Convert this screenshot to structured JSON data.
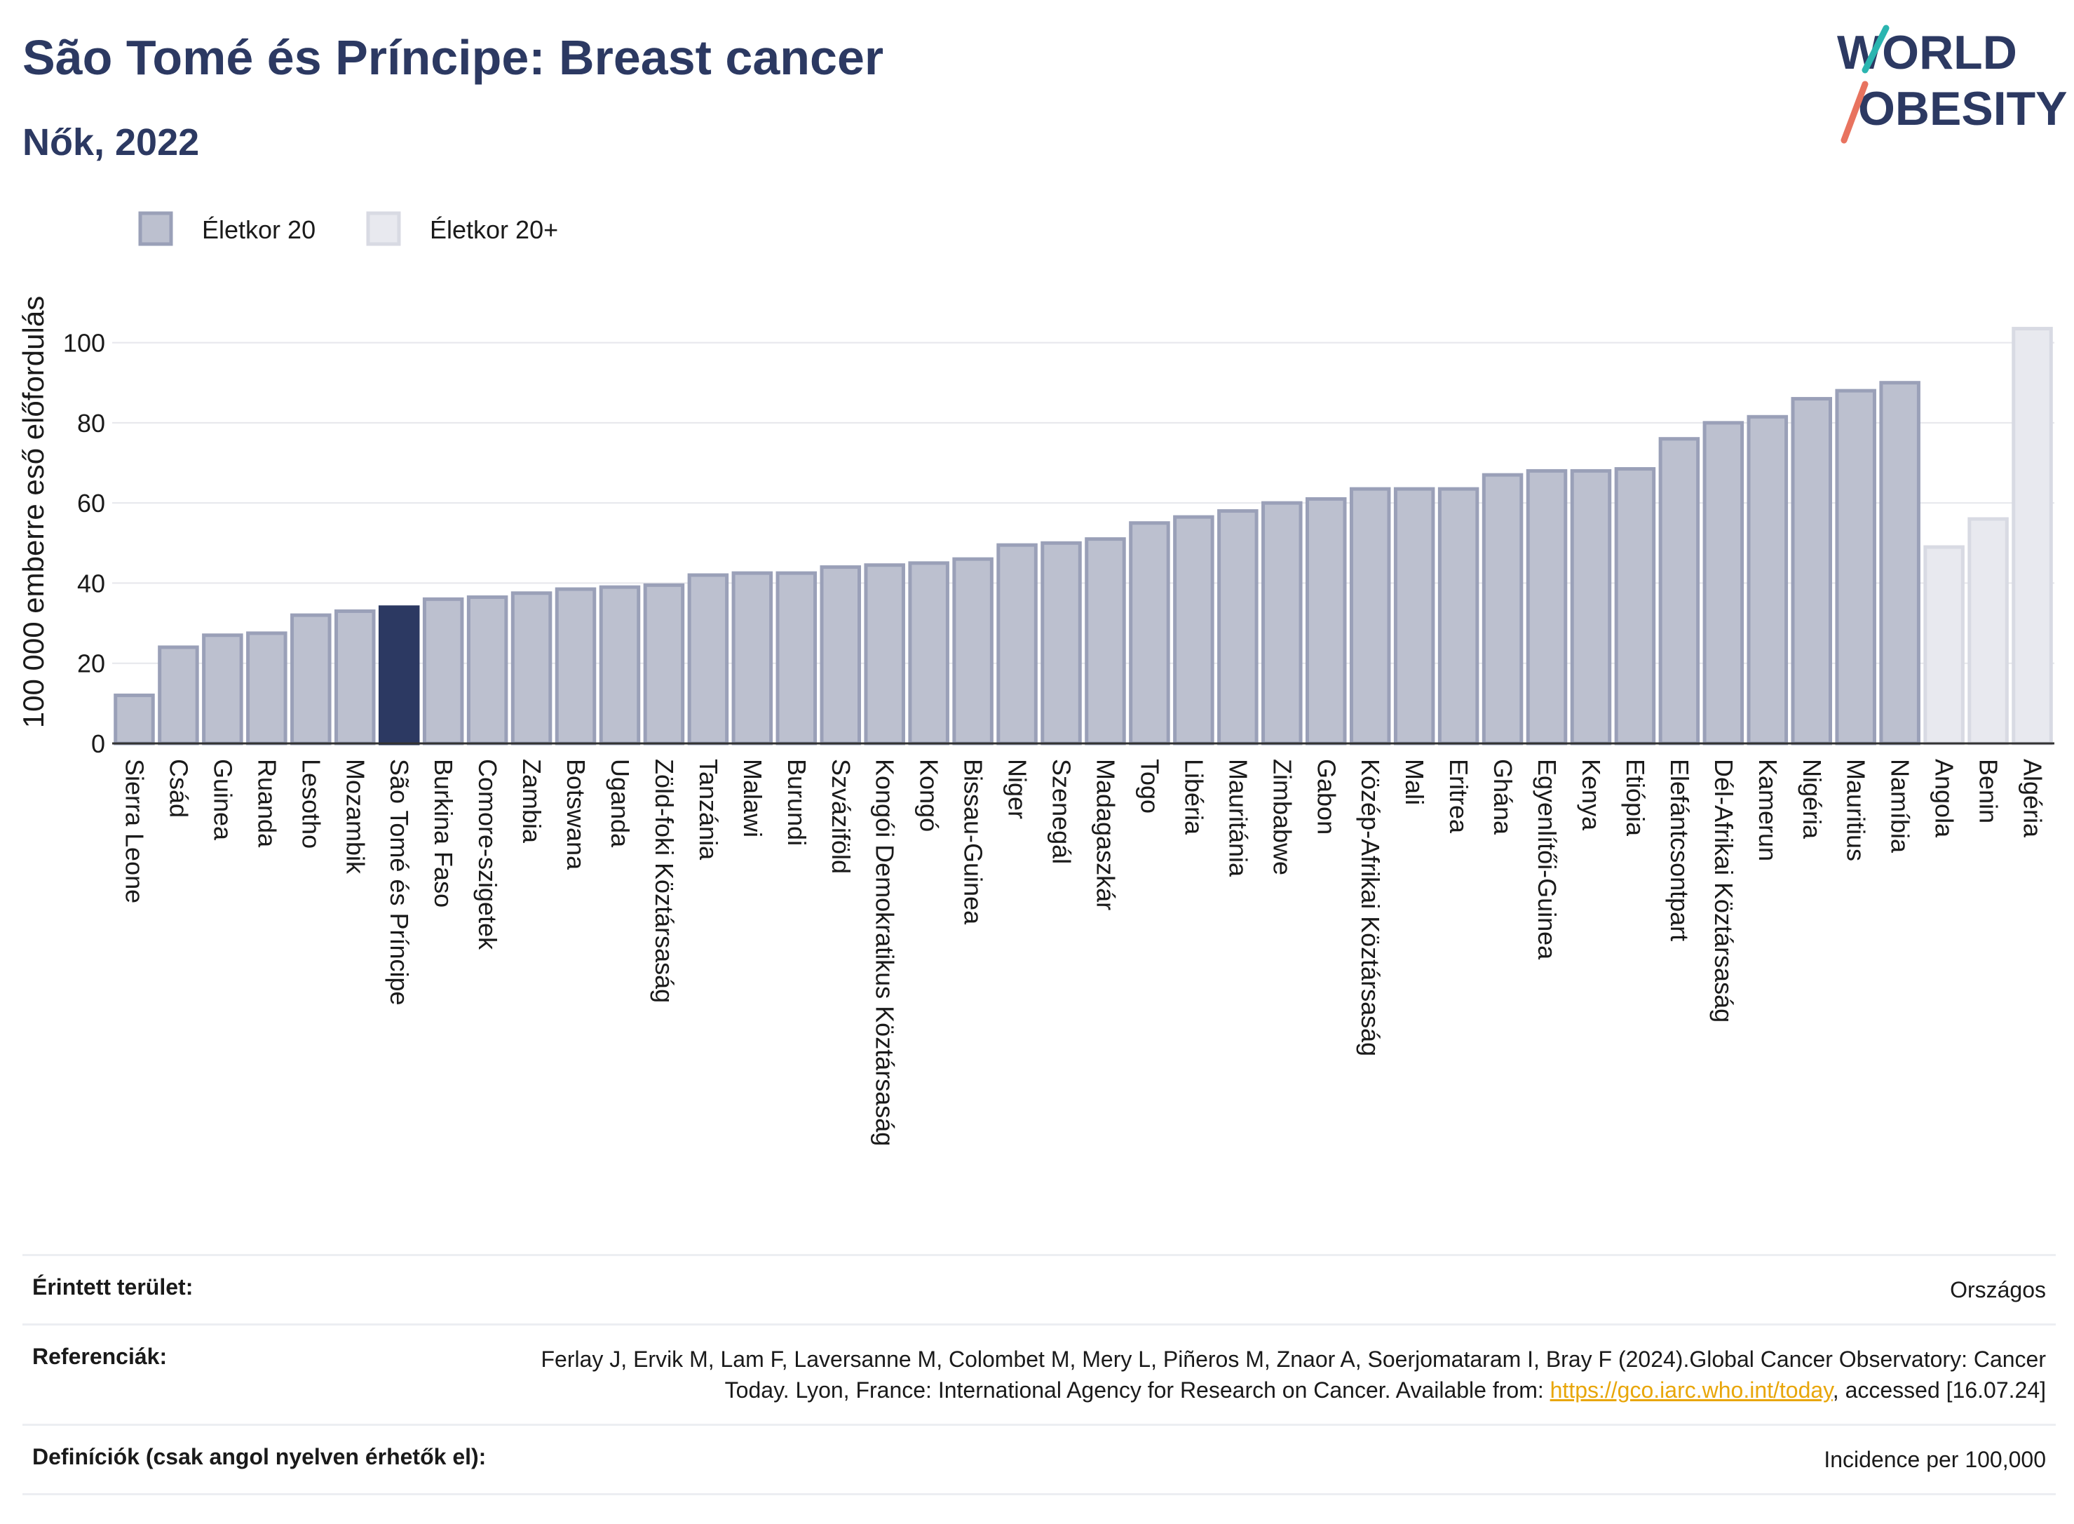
{
  "header": {
    "title": "São Tomé és Príncipe: Breast cancer",
    "subtitle": "Nők, 2022"
  },
  "logo": {
    "line1": "WORLD",
    "line2": "OBESITY"
  },
  "colors": {
    "title": "#2c3962",
    "bar_group1": "#bcc0cf",
    "bar_group1_stroke": "#9aa0b8",
    "bar_group2": "#e8e9ef",
    "bar_group2_stroke": "#d8dae3",
    "highlight": "#2c3962",
    "logo_teal": "#2bb5b0",
    "logo_coral": "#e8735f"
  },
  "chart_data": {
    "type": "bar",
    "ylabel": "100 000 emberre eső előfordulás",
    "ylim": [
      0,
      105
    ],
    "yticks": [
      0,
      20,
      40,
      60,
      80,
      100
    ],
    "grid": true,
    "legend_position": "top-left",
    "highlight": "São Tomé és Príncipe",
    "series": [
      {
        "name": "Életkor 20",
        "style": "group1"
      },
      {
        "name": "Életkor 20+",
        "style": "group2"
      }
    ],
    "categories": [
      "Sierra Leone",
      "Csád",
      "Guinea",
      "Ruanda",
      "Lesotho",
      "Mozambik",
      "São Tomé és Príncipe",
      "Burkina Faso",
      "Comore-szigetek",
      "Zambia",
      "Botswana",
      "Uganda",
      "Zöld-foki Köztársaság",
      "Tanzánia",
      "Malawi",
      "Burundi",
      "Szváziföld",
      "Kongói Demokratikus Köztársaság",
      "Kongó",
      "Bissau-Guinea",
      "Niger",
      "Szenegál",
      "Madagaszkár",
      "Togo",
      "Libéria",
      "Mauritánia",
      "Zimbabwe",
      "Gabon",
      "Közép-Afrikai Köztársaság",
      "Mali",
      "Eritrea",
      "Ghána",
      "Egyenlítői-Guinea",
      "Kenya",
      "Etiópia",
      "Elefántcsontpart",
      "Dél-Afrikai Köztársaság",
      "Kamerun",
      "Nigéria",
      "Mauritius",
      "Namíbia",
      "Angola",
      "Benin",
      "Algéria"
    ],
    "values": [
      12,
      24,
      27,
      27.5,
      32,
      33,
      34,
      36,
      36.5,
      37.5,
      38.5,
      39,
      39.5,
      42,
      42.5,
      42.5,
      44,
      44.5,
      45,
      46,
      49.5,
      50,
      51,
      55,
      56.5,
      58,
      60,
      61,
      63.5,
      63.5,
      63.5,
      67,
      68,
      68,
      68.5,
      76,
      80,
      81.5,
      86,
      88,
      90,
      49,
      56,
      103.5
    ],
    "groups": [
      0,
      0,
      0,
      0,
      0,
      0,
      0,
      0,
      0,
      0,
      0,
      0,
      0,
      0,
      0,
      0,
      0,
      0,
      0,
      0,
      0,
      0,
      0,
      0,
      0,
      0,
      0,
      0,
      0,
      0,
      0,
      0,
      0,
      0,
      0,
      0,
      0,
      0,
      0,
      0,
      0,
      1,
      1,
      1
    ]
  },
  "meta": {
    "area_label": "Érintett terület:",
    "area_value": "Országos",
    "ref_label": "Referenciák:",
    "ref_text_1": "Ferlay J, Ervik M, Lam F, Laversanne M, Colombet M, Mery L, Piñeros M, Znaor A, Soerjomataram I, Bray F (2024).Global Cancer Observatory: Cancer Today. Lyon, France: International Agency for Research on Cancer. Available from: ",
    "ref_link": "https://gco.iarc.who.int/today",
    "ref_text_2": ", accessed [16.07.24]",
    "def_label": "Definíciók (csak angol nyelven érhetők el):",
    "def_value": "Incidence per 100,000"
  }
}
